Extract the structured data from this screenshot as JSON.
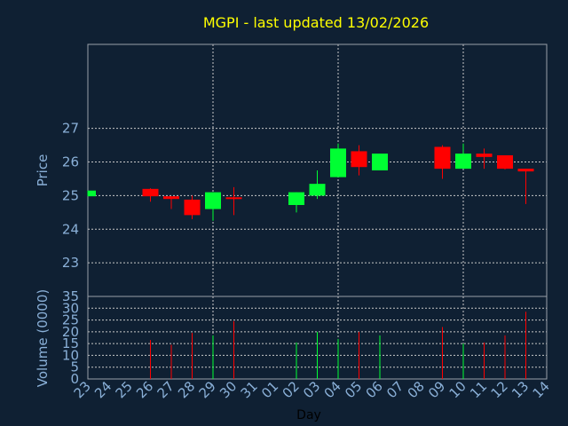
{
  "chart_data": [
    {
      "type": "candlestick",
      "title": "MGPI - last updated 13/02/2026",
      "ylabel": "Price",
      "ylim": [
        22,
        29.5
      ],
      "yticks": [
        23,
        24,
        25,
        26,
        27
      ],
      "colors": {
        "up": "#00ff33",
        "down": "#ff0000"
      },
      "grid": true,
      "candles": [
        {
          "day": "23",
          "open": 24.98,
          "high": 25.15,
          "low": 24.98,
          "close": 25.15
        },
        {
          "day": "26",
          "open": 25.2,
          "high": 25.22,
          "low": 24.82,
          "close": 24.98
        },
        {
          "day": "27",
          "open": 24.98,
          "high": 24.98,
          "low": 24.6,
          "close": 24.9
        },
        {
          "day": "28",
          "open": 24.88,
          "high": 25.0,
          "low": 24.3,
          "close": 24.42
        },
        {
          "day": "29",
          "open": 24.6,
          "high": 25.1,
          "low": 24.25,
          "close": 25.1
        },
        {
          "day": "30",
          "open": 24.95,
          "high": 25.25,
          "low": 24.42,
          "close": 24.9
        },
        {
          "day": "02",
          "open": 24.72,
          "high": 25.1,
          "low": 24.5,
          "close": 25.1
        },
        {
          "day": "03",
          "open": 25.0,
          "high": 25.75,
          "low": 24.9,
          "close": 25.35
        },
        {
          "day": "04",
          "open": 25.55,
          "high": 26.55,
          "low": 25.55,
          "close": 26.4
        },
        {
          "day": "05",
          "open": 26.32,
          "high": 26.5,
          "low": 25.6,
          "close": 25.85
        },
        {
          "day": "06",
          "open": 25.75,
          "high": 26.25,
          "low": 25.75,
          "close": 26.25
        },
        {
          "day": "09",
          "open": 26.45,
          "high": 26.5,
          "low": 25.5,
          "close": 25.8
        },
        {
          "day": "10",
          "open": 25.8,
          "high": 26.55,
          "low": 25.8,
          "close": 26.25
        },
        {
          "day": "11",
          "open": 26.25,
          "high": 26.4,
          "low": 25.8,
          "close": 26.15
        },
        {
          "day": "12",
          "open": 26.2,
          "high": 26.2,
          "low": 25.78,
          "close": 25.8
        },
        {
          "day": "13",
          "open": 25.8,
          "high": 25.8,
          "low": 24.75,
          "close": 25.72
        }
      ]
    },
    {
      "type": "bar",
      "ylabel": "Volume (0000)",
      "xlabel": "Day",
      "ylim": [
        0,
        35
      ],
      "yticks": [
        0,
        5,
        10,
        15,
        20,
        25,
        30,
        35
      ],
      "grid": true,
      "categories": [
        "23",
        "24",
        "25",
        "26",
        "27",
        "28",
        "29",
        "30",
        "31",
        "01",
        "02",
        "03",
        "04",
        "05",
        "06",
        "07",
        "08",
        "09",
        "10",
        "11",
        "12",
        "13",
        "14"
      ],
      "volumes": [
        {
          "day": "26",
          "value": 16.5,
          "direction": "down"
        },
        {
          "day": "27",
          "value": 14.5,
          "direction": "down"
        },
        {
          "day": "28",
          "value": 19.5,
          "direction": "down"
        },
        {
          "day": "29",
          "value": 18.5,
          "direction": "up"
        },
        {
          "day": "30",
          "value": 24.5,
          "direction": "down"
        },
        {
          "day": "02",
          "value": 15.5,
          "direction": "up"
        },
        {
          "day": "03",
          "value": 20,
          "direction": "up"
        },
        {
          "day": "04",
          "value": 17,
          "direction": "up"
        },
        {
          "day": "05",
          "value": 20,
          "direction": "down"
        },
        {
          "day": "06",
          "value": 18.5,
          "direction": "up"
        },
        {
          "day": "09",
          "value": 22,
          "direction": "down"
        },
        {
          "day": "10",
          "value": 15,
          "direction": "up"
        },
        {
          "day": "11",
          "value": 15.5,
          "direction": "down"
        },
        {
          "day": "12",
          "value": 18.5,
          "direction": "down"
        },
        {
          "day": "13",
          "value": 28.5,
          "direction": "down"
        }
      ]
    }
  ]
}
